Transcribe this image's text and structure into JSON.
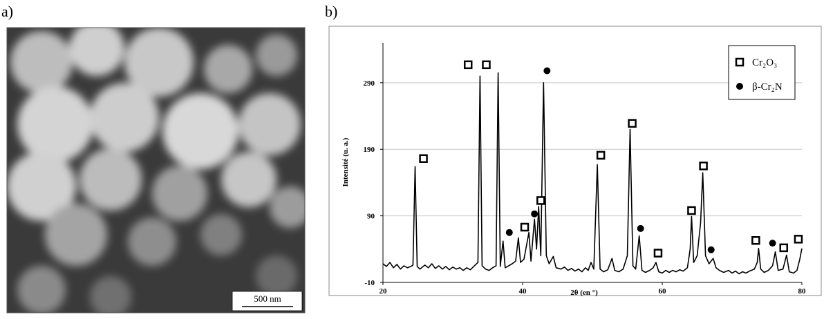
{
  "panels": {
    "a": "a)",
    "b": "b)"
  },
  "image": {
    "scale_bar": "500 nm"
  },
  "chart_data": {
    "type": "line",
    "xlabel": "2θ (en °)",
    "ylabel": "Intensité (u. a.)",
    "xlim": [
      20,
      80
    ],
    "xticks": [
      20,
      40,
      60,
      80
    ],
    "ylim": [
      -10,
      350
    ],
    "yticks": [
      -10,
      90,
      190,
      290
    ],
    "grid": true,
    "color": "#000000",
    "x": [
      20,
      20.5,
      21,
      21.5,
      22,
      22.5,
      23,
      23.5,
      24,
      24.3,
      24.6,
      24.9,
      25.3,
      26,
      26.5,
      27,
      27.5,
      28,
      28.5,
      29,
      29.5,
      30,
      30.5,
      31,
      31.5,
      32,
      32.5,
      33,
      33.6,
      33.9,
      34.2,
      34.7,
      35.2,
      35.7,
      36.2,
      36.5,
      36.8,
      37.2,
      37.5,
      38,
      38.5,
      39,
      39.4,
      39.7,
      40.2,
      40.9,
      41.2,
      41.7,
      42,
      42.3,
      42.6,
      43,
      43.4,
      43.8,
      44.4,
      44.8,
      45.5,
      46,
      46.5,
      47,
      47.5,
      48,
      48.5,
      49,
      49.4,
      49.8,
      50.2,
      50.7,
      51.1,
      51.6,
      52.2,
      52.8,
      53.2,
      53.8,
      54.4,
      55,
      55.4,
      55.8,
      56.2,
      56.7,
      57.1,
      57.6,
      58.2,
      58.7,
      59.1,
      59.5,
      60,
      60.5,
      61,
      61.5,
      62,
      62.5,
      63,
      63.6,
      64,
      64.2,
      64.5,
      65,
      65.5,
      65.8,
      66.2,
      66.7,
      67.3,
      67.7,
      68.2,
      68.8,
      69.5,
      70,
      70.5,
      71,
      71.5,
      72,
      72.5,
      73.2,
      73.6,
      73.8,
      74.1,
      74.6,
      75.2,
      75.8,
      76.2,
      76.6,
      77.3,
      77.8,
      78.2,
      78.8,
      79.3,
      79.7,
      80
    ],
    "values": [
      18,
      14,
      20,
      12,
      17,
      10,
      15,
      12,
      14,
      16,
      164,
      14,
      10,
      16,
      12,
      18,
      11,
      15,
      10,
      14,
      9,
      13,
      10,
      12,
      8,
      12,
      9,
      14,
      20,
      300,
      15,
      10,
      8,
      12,
      15,
      305,
      14,
      52,
      12,
      15,
      18,
      22,
      57,
      20,
      25,
      65,
      22,
      85,
      40,
      104,
      30,
      290,
      30,
      18,
      29,
      12,
      10,
      13,
      8,
      11,
      7,
      10,
      6,
      12,
      8,
      20,
      10,
      167,
      10,
      6,
      9,
      26,
      8,
      6,
      10,
      30,
      220,
      15,
      10,
      60,
      8,
      5,
      8,
      12,
      20,
      6,
      4,
      8,
      5,
      8,
      6,
      9,
      7,
      12,
      40,
      89,
      20,
      30,
      80,
      155,
      30,
      18,
      26,
      12,
      8,
      5,
      8,
      4,
      7,
      3,
      6,
      4,
      7,
      10,
      20,
      41,
      10,
      5,
      8,
      15,
      36,
      8,
      10,
      31,
      6,
      4,
      8,
      25,
      41
    ],
    "legend": "upper right",
    "markers": [
      {
        "name": "Cr₂O₃",
        "symbol": "square",
        "color": "#000000",
        "x": [
          25.8,
          32.2,
          34.8,
          40.3,
          42.6,
          51.2,
          55.7,
          59.4,
          64.2,
          65.9,
          73.4,
          77.4,
          79.5
        ],
        "values": [
          176,
          317,
          317,
          73,
          113,
          181,
          229,
          34,
          98,
          165,
          53,
          42,
          55
        ]
      },
      {
        "name": "β-Cr₂N",
        "symbol": "circle",
        "color": "#000000",
        "x": [
          38.1,
          41.7,
          43.5,
          56.9,
          67.0,
          75.8
        ],
        "values": [
          65,
          93,
          308,
          71,
          39,
          49
        ]
      }
    ]
  }
}
